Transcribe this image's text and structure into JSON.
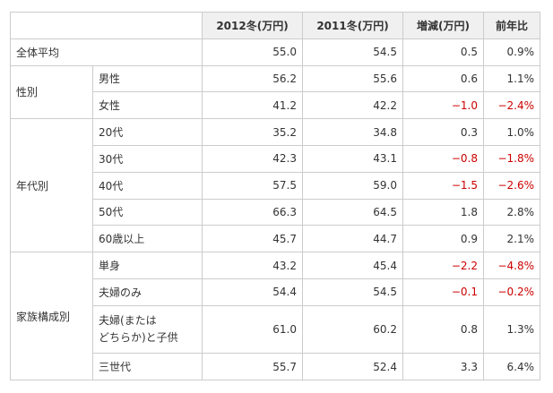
{
  "headers": [
    "2012冬(万円)",
    "2011冬(万円)",
    "増減(万円)",
    "前年比"
  ],
  "rows": [
    {
      "group": "全体平均",
      "sub": "",
      "v2012": "55.0",
      "v2011": "54.5",
      "diff": "0.5",
      "ratio": "0.9%"
    },
    {
      "group": "性別",
      "sub": "男性",
      "v2012": "56.2",
      "v2011": "55.6",
      "diff": "0.6",
      "ratio": "1.1%"
    },
    {
      "group": "",
      "sub": "女性",
      "v2012": "41.2",
      "v2011": "42.2",
      "diff": "−1.0",
      "ratio": "−2.4%"
    },
    {
      "group": "年代別",
      "sub": "20代",
      "v2012": "35.2",
      "v2011": "34.8",
      "diff": "0.3",
      "ratio": "1.0%"
    },
    {
      "group": "",
      "sub": "30代",
      "v2012": "42.3",
      "v2011": "43.1",
      "diff": "−0.8",
      "ratio": "−1.8%"
    },
    {
      "group": "",
      "sub": "40代",
      "v2012": "57.5",
      "v2011": "59.0",
      "diff": "−1.5",
      "ratio": "−2.6%"
    },
    {
      "group": "",
      "sub": "50代",
      "v2012": "66.3",
      "v2011": "64.5",
      "diff": "1.8",
      "ratio": "2.8%"
    },
    {
      "group": "",
      "sub": "60歳以上",
      "v2012": "45.7",
      "v2011": "44.7",
      "diff": "0.9",
      "ratio": "2.1%"
    },
    {
      "group": "家族構成別",
      "sub": "単身",
      "v2012": "43.2",
      "v2011": "45.4",
      "diff": "−2.2",
      "ratio": "−4.8%"
    },
    {
      "group": "",
      "sub": "夫婦のみ",
      "v2012": "54.4",
      "v2011": "54.5",
      "diff": "−0.1",
      "ratio": "−0.2%"
    },
    {
      "group": "",
      "sub": "夫婦(または\nどちらか)と子供",
      "v2012": "61.0",
      "v2011": "60.2",
      "diff": "0.8",
      "ratio": "1.3%"
    },
    {
      "group": "",
      "sub": "三世代",
      "v2012": "55.7",
      "v2011": "52.4",
      "diff": "3.3",
      "ratio": "6.4%"
    }
  ],
  "colors": {
    "negative": "#cc0000",
    "header_bg": "#f0f0f0",
    "border": "#cccccc"
  }
}
